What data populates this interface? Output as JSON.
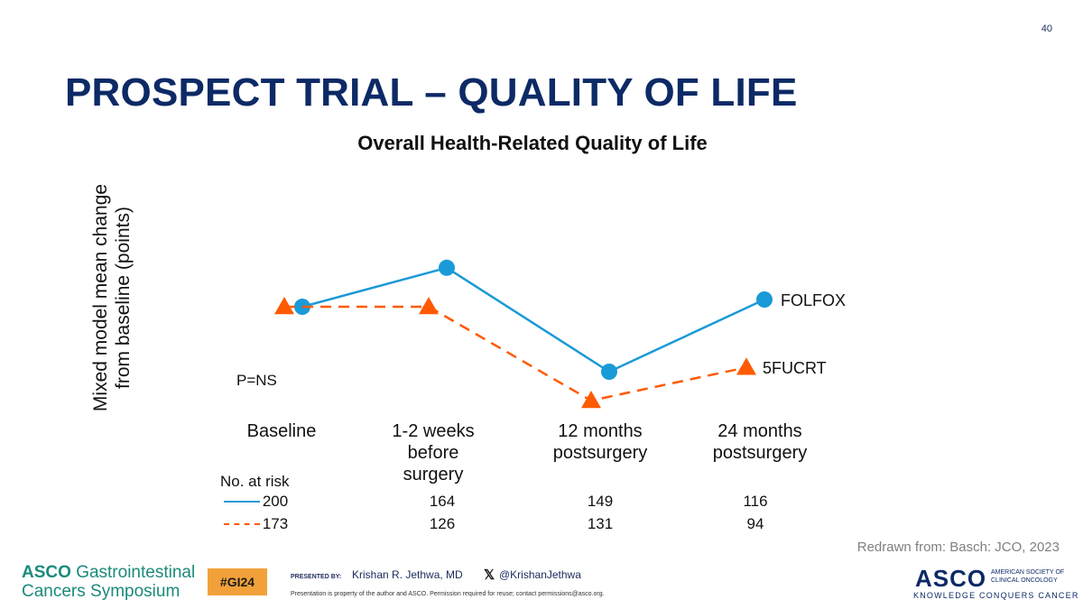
{
  "slide": {
    "number": "40",
    "title": "PROSPECT TRIAL – QUALITY OF LIFE",
    "source": "Redrawn from: Basch: JCO, 2023"
  },
  "chart_data": {
    "type": "line",
    "title": "Overall Health-Related Quality of Life",
    "ylabel_lines": [
      "Mixed model mean change",
      "from baseline (points)"
    ],
    "xlabel": "",
    "ylim": [
      -10,
      10
    ],
    "categories": [
      [
        "Baseline"
      ],
      [
        "1-2 weeks",
        "before",
        "surgery"
      ],
      [
        "12 months",
        "postsurgery"
      ],
      [
        "24 months",
        "postsurgery"
      ]
    ],
    "series": [
      {
        "name": "FOLFOX",
        "marker": "circle",
        "line": "solid",
        "color": "#1a9ad6",
        "values": [
          0,
          2.7,
          -4.5,
          0.5
        ]
      },
      {
        "name": "5FUCRT",
        "marker": "triangle",
        "line": "dashed",
        "color": "#ff5a00",
        "values": [
          0,
          0,
          -6.5,
          -4.2
        ]
      }
    ],
    "annotation": "P=NS"
  },
  "at_risk": {
    "title": "No. at risk",
    "rows": [
      {
        "series": "FOLFOX",
        "values": [
          "200",
          "164",
          "149",
          "116"
        ]
      },
      {
        "series": "5FUCRT",
        "values": [
          "173",
          "126",
          "131",
          "94"
        ]
      }
    ]
  },
  "footer": {
    "brand_word": "ASCO",
    "brand_rest": "Gastrointestinal",
    "brand_line2": "Cancers Symposium",
    "hashtag": "#GI24",
    "presented_by": "PRESENTED BY:",
    "presenter": "Krishan R. Jethwa, MD",
    "x_glyph": "𝕏",
    "twitter": "@KrishanJethwa",
    "disclaimer": "Presentation is property of the author and ASCO. Permission required for reuse; contact permissions@asco.org.",
    "asco_logo": "ASCO",
    "asco_sub": "AMERICAN SOCIETY OF CLINICAL ONCOLOGY",
    "asco_tagline": "KNOWLEDGE CONQUERS CANCER"
  }
}
